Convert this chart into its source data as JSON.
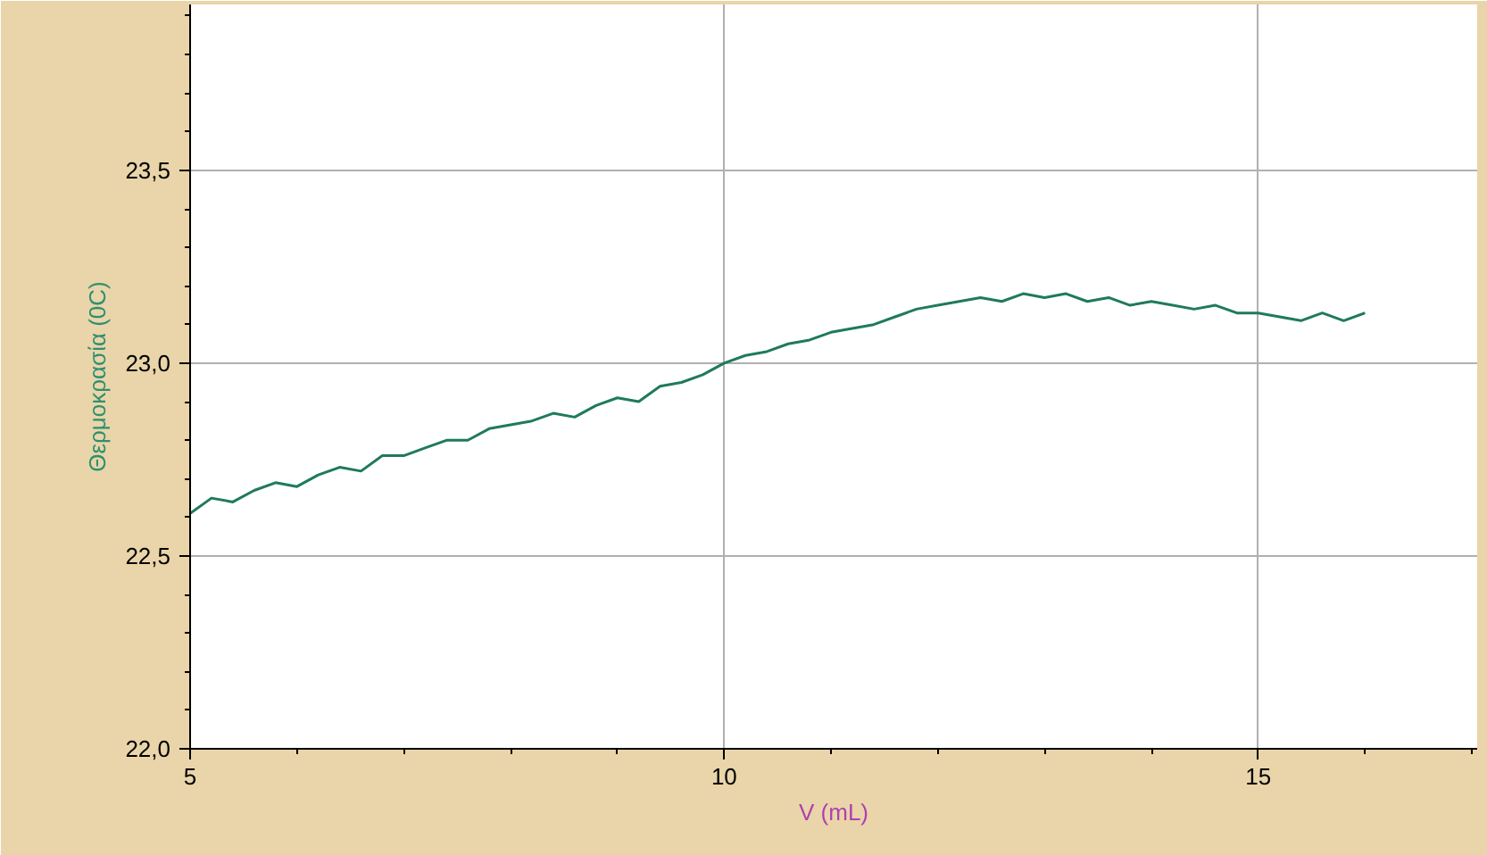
{
  "chart_data": {
    "type": "line",
    "xlabel": "V (mL)",
    "ylabel": "Θερμοκρασία (0C)",
    "xlim": [
      5,
      17.05
    ],
    "ylim": [
      22.0,
      23.93
    ],
    "xticks": [
      5,
      {
        "value": 6,
        "label": null
      },
      {
        "value": 7,
        "label": null
      },
      {
        "value": 8,
        "label": null
      },
      {
        "value": 9,
        "label": null
      },
      10,
      {
        "value": 11,
        "label": null
      },
      {
        "value": 12,
        "label": null
      },
      {
        "value": 13,
        "label": null
      },
      {
        "value": 14,
        "label": null
      },
      15,
      {
        "value": 16,
        "label": null
      },
      {
        "value": 17,
        "label": null
      }
    ],
    "yticks": [
      {
        "value": 22.0,
        "label": "22,0"
      },
      {
        "value": 22.1,
        "label": null
      },
      {
        "value": 22.2,
        "label": null
      },
      {
        "value": 22.3,
        "label": null
      },
      {
        "value": 22.4,
        "label": null
      },
      {
        "value": 22.5,
        "label": "22,5"
      },
      {
        "value": 22.6,
        "label": null
      },
      {
        "value": 22.7,
        "label": null
      },
      {
        "value": 22.8,
        "label": null
      },
      {
        "value": 22.9,
        "label": null
      },
      {
        "value": 23.0,
        "label": "23,0"
      },
      {
        "value": 23.1,
        "label": null
      },
      {
        "value": 23.2,
        "label": null
      },
      {
        "value": 23.3,
        "label": null
      },
      {
        "value": 23.4,
        "label": null
      },
      {
        "value": 23.5,
        "label": "23,5"
      },
      {
        "value": 23.6,
        "label": null
      },
      {
        "value": 23.7,
        "label": null
      },
      {
        "value": 23.8,
        "label": null
      },
      {
        "value": 23.9,
        "label": null
      }
    ],
    "grid": true,
    "marker": "none",
    "line_style": "solid",
    "series": [
      {
        "color": "#1f7a5c",
        "x": [
          5.0,
          5.2,
          5.4,
          5.6,
          5.8,
          6.0,
          6.2,
          6.4,
          6.6,
          6.8,
          7.0,
          7.2,
          7.4,
          7.6,
          7.8,
          8.0,
          8.2,
          8.4,
          8.6,
          8.8,
          9.0,
          9.2,
          9.4,
          9.6,
          9.8,
          10.0,
          10.2,
          10.4,
          10.6,
          10.8,
          11.0,
          11.2,
          11.4,
          11.6,
          11.8,
          12.0,
          12.2,
          12.4,
          12.6,
          12.8,
          13.0,
          13.2,
          13.4,
          13.6,
          13.8,
          14.0,
          14.2,
          14.4,
          14.6,
          14.8,
          15.0,
          15.2,
          15.4,
          15.6,
          15.8,
          16.0
        ],
        "values": [
          22.61,
          22.65,
          22.64,
          22.67,
          22.69,
          22.68,
          22.71,
          22.73,
          22.72,
          22.76,
          22.76,
          22.78,
          22.8,
          22.8,
          22.83,
          22.84,
          22.85,
          22.87,
          22.86,
          22.89,
          22.91,
          22.9,
          22.94,
          22.95,
          22.97,
          23.0,
          23.02,
          23.03,
          23.05,
          23.06,
          23.08,
          23.09,
          23.1,
          23.12,
          23.14,
          23.15,
          23.16,
          23.17,
          23.16,
          23.18,
          23.17,
          23.18,
          23.16,
          23.17,
          23.15,
          23.16,
          23.15,
          23.14,
          23.15,
          23.13,
          23.13,
          23.12,
          23.11,
          23.13,
          23.11,
          23.13
        ]
      }
    ]
  }
}
